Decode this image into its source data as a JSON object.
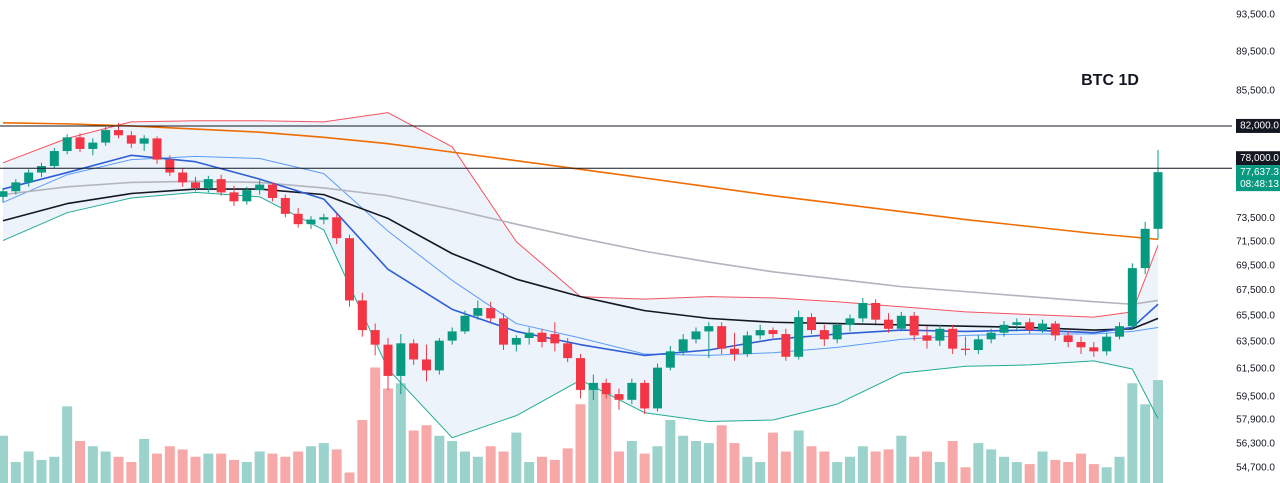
{
  "chart_data": {
    "type": "candlestick",
    "title": "BTC 1D",
    "log_scale": true,
    "ylim": [
      53740,
      95180
    ],
    "yticks": [
      {
        "value": 93500,
        "label": "93,500.0"
      },
      {
        "value": 89500,
        "label": "89,500.0"
      },
      {
        "value": 85500,
        "label": "85,500.0"
      },
      {
        "value": 73500,
        "label": "73,500.0"
      },
      {
        "value": 71500,
        "label": "71,500.0"
      },
      {
        "value": 69500,
        "label": "69,500.0"
      },
      {
        "value": 67500,
        "label": "67,500.0"
      },
      {
        "value": 65500,
        "label": "65,500.0"
      },
      {
        "value": 63500,
        "label": "63,500.0"
      },
      {
        "value": 61500,
        "label": "61,500.0"
      },
      {
        "value": 59500,
        "label": "59,500.0"
      },
      {
        "value": 57900,
        "label": "57,900.0"
      },
      {
        "value": 56300,
        "label": "56,300.0"
      },
      {
        "value": 54700,
        "label": "54,700.0"
      }
    ],
    "up_color": "#089981",
    "down_color": "#f23645",
    "volume_up_color": "#9bd3cc",
    "volume_down_color": "#f7a9a9",
    "ohlc": [
      [
        75400,
        76200,
        74900,
        75900
      ],
      [
        75900,
        77000,
        75600,
        76700
      ],
      [
        76700,
        77900,
        76300,
        77600
      ],
      [
        77600,
        78500,
        77200,
        78200
      ],
      [
        78200,
        79900,
        78000,
        79600
      ],
      [
        79600,
        81200,
        79300,
        80900
      ],
      [
        80900,
        81300,
        79500,
        79800
      ],
      [
        79800,
        80800,
        79200,
        80400
      ],
      [
        80400,
        81900,
        80100,
        81600
      ],
      [
        81600,
        82300,
        80800,
        81100
      ],
      [
        81100,
        81500,
        79900,
        80300
      ],
      [
        80300,
        81100,
        79600,
        80800
      ],
      [
        80800,
        81000,
        78400,
        78800
      ],
      [
        78800,
        79200,
        77300,
        77600
      ],
      [
        77600,
        78000,
        76300,
        76700
      ],
      [
        76700,
        77200,
        75900,
        76200
      ],
      [
        76200,
        77300,
        75800,
        77000
      ],
      [
        77000,
        77400,
        75500,
        75800
      ],
      [
        75800,
        76400,
        74600,
        75000
      ],
      [
        75000,
        76300,
        74700,
        76000
      ],
      [
        76000,
        76900,
        75600,
        76500
      ],
      [
        76500,
        76700,
        75000,
        75300
      ],
      [
        75300,
        75600,
        73600,
        73900
      ],
      [
        73900,
        74400,
        72700,
        73000
      ],
      [
        73000,
        73700,
        72600,
        73400
      ],
      [
        73400,
        73900,
        73000,
        73600
      ],
      [
        73600,
        73900,
        71300,
        71800
      ],
      [
        71800,
        72100,
        66200,
        66700
      ],
      [
        66700,
        67300,
        63900,
        64400
      ],
      [
        64400,
        64900,
        62500,
        63300
      ],
      [
        63300,
        63800,
        60000,
        61000
      ],
      [
        61000,
        64100,
        59700,
        63400
      ],
      [
        63400,
        63700,
        61800,
        62200
      ],
      [
        62200,
        63300,
        60600,
        61400
      ],
      [
        61400,
        63800,
        61100,
        63600
      ],
      [
        63600,
        64600,
        63300,
        64300
      ],
      [
        64300,
        65900,
        64100,
        65500
      ],
      [
        65500,
        66700,
        65200,
        66100
      ],
      [
        66100,
        66600,
        65000,
        65300
      ],
      [
        65300,
        65700,
        62900,
        63300
      ],
      [
        63300,
        64000,
        62800,
        63800
      ],
      [
        63800,
        64600,
        63300,
        64200
      ],
      [
        64200,
        64500,
        63100,
        63500
      ],
      [
        64100,
        65000,
        62800,
        63400
      ],
      [
        63400,
        63800,
        62000,
        62300
      ],
      [
        62300,
        62600,
        59400,
        60000
      ],
      [
        60000,
        61100,
        59300,
        60500
      ],
      [
        60500,
        60800,
        59400,
        59700
      ],
      [
        59700,
        60100,
        58600,
        59300
      ],
      [
        59300,
        60800,
        59000,
        60500
      ],
      [
        60500,
        60700,
        58300,
        58700
      ],
      [
        58700,
        61900,
        58500,
        61600
      ],
      [
        61600,
        63200,
        61400,
        62800
      ],
      [
        62800,
        64100,
        62500,
        63700
      ],
      [
        63700,
        64600,
        63400,
        64300
      ],
      [
        64300,
        65000,
        62300,
        64700
      ],
      [
        64700,
        65000,
        62600,
        63000
      ],
      [
        63000,
        64200,
        62100,
        62600
      ],
      [
        62600,
        64300,
        62400,
        64000
      ],
      [
        64000,
        64800,
        63700,
        64400
      ],
      [
        64400,
        64600,
        63800,
        64100
      ],
      [
        64100,
        64500,
        62100,
        62400
      ],
      [
        62400,
        65900,
        62200,
        65400
      ],
      [
        65400,
        65700,
        64100,
        64400
      ],
      [
        64400,
        64800,
        63200,
        63700
      ],
      [
        63700,
        65000,
        63400,
        64800
      ],
      [
        64800,
        65600,
        64300,
        65300
      ],
      [
        65300,
        66900,
        65000,
        66500
      ],
      [
        66500,
        66800,
        64900,
        65200
      ],
      [
        65200,
        65700,
        64200,
        64500
      ],
      [
        64500,
        65800,
        64300,
        65500
      ],
      [
        65500,
        65800,
        63600,
        64000
      ],
      [
        64000,
        64700,
        63000,
        63600
      ],
      [
        63600,
        64800,
        63200,
        64500
      ],
      [
        64500,
        64800,
        62600,
        63000
      ],
      [
        63000,
        63900,
        62500,
        62900
      ],
      [
        62900,
        64000,
        62600,
        63700
      ],
      [
        63700,
        64500,
        63400,
        64200
      ],
      [
        64200,
        65100,
        63900,
        64800
      ],
      [
        64800,
        65300,
        64300,
        65000
      ],
      [
        65000,
        65300,
        64100,
        64400
      ],
      [
        64400,
        65200,
        64200,
        64900
      ],
      [
        64900,
        65100,
        63600,
        64000
      ],
      [
        64000,
        64300,
        63100,
        63500
      ],
      [
        63500,
        63900,
        62600,
        63100
      ],
      [
        63100,
        63500,
        62400,
        62800
      ],
      [
        62800,
        64200,
        62500,
        63900
      ],
      [
        63900,
        65000,
        63700,
        64700
      ],
      [
        64700,
        69700,
        64500,
        69300
      ],
      [
        69300,
        73200,
        68800,
        72600
      ],
      [
        72600,
        79700,
        71700,
        77637.3
      ]
    ],
    "volume": [
      45,
      20,
      30,
      22,
      25,
      73,
      40,
      35,
      30,
      25,
      20,
      42,
      28,
      35,
      32,
      25,
      28,
      28,
      22,
      20,
      30,
      28,
      25,
      30,
      35,
      38,
      32,
      10,
      60,
      110,
      90,
      95,
      50,
      55,
      45,
      40,
      30,
      25,
      35,
      30,
      48,
      20,
      25,
      22,
      33,
      75,
      95,
      85,
      30,
      40,
      28,
      35,
      60,
      45,
      40,
      38,
      55,
      38,
      25,
      20,
      48,
      30,
      50,
      35,
      30,
      20,
      25,
      35,
      30,
      32,
      45,
      25,
      30,
      20,
      40,
      15,
      38,
      32,
      25,
      20,
      18,
      30,
      22,
      20,
      28,
      18,
      15,
      25,
      95,
      75,
      98
    ],
    "line_x": [
      0,
      5,
      10,
      15,
      20,
      25,
      30,
      35,
      40,
      45,
      50,
      55,
      60,
      65,
      70,
      75,
      80,
      85,
      88,
      90
    ],
    "band": {
      "fill": "#e7f0fa",
      "upper": {
        "color": "#f7525f",
        "values": [
          78500,
          80800,
          82400,
          82500,
          82500,
          82400,
          83300,
          80000,
          71500,
          67000,
          66800,
          67000,
          66900,
          66600,
          66200,
          65800,
          65600,
          65400,
          65800,
          71200
        ]
      },
      "basis": {
        "color": "#5b9cf6",
        "values": [
          74900,
          77400,
          78800,
          79100,
          78900,
          77500,
          72400,
          68300,
          64900,
          63800,
          62600,
          62500,
          62700,
          63100,
          63700,
          64000,
          64100,
          64100,
          64300,
          64600
        ]
      },
      "lower": {
        "color": "#22ab94",
        "values": [
          71600,
          74000,
          75300,
          75800,
          75400,
          72500,
          61500,
          56700,
          58200,
          60700,
          58400,
          57800,
          57900,
          59000,
          61200,
          61700,
          61800,
          62100,
          61500,
          58000
        ]
      }
    },
    "moving_averages": [
      {
        "color": "#ef6c00",
        "values": [
          82300,
          82200,
          82000,
          81700,
          81400,
          80900,
          80300,
          79500,
          78700,
          77900,
          77100,
          76300,
          75500,
          74800,
          74100,
          73400,
          72800,
          72200,
          71900,
          71700
        ]
      },
      {
        "color": "#b2b5be",
        "values": [
          75600,
          76300,
          76700,
          76800,
          76700,
          76200,
          75500,
          74300,
          73000,
          71800,
          70700,
          69800,
          69000,
          68400,
          67800,
          67400,
          67000,
          66600,
          66400,
          66700
        ]
      },
      {
        "color": "#131722",
        "values": [
          73300,
          74800,
          75700,
          76100,
          76100,
          75600,
          73500,
          70500,
          68400,
          67000,
          65900,
          65300,
          65000,
          64900,
          64800,
          64700,
          64600,
          64400,
          64500,
          65300
        ]
      },
      {
        "color": "#2f5fd6",
        "values": [
          76100,
          77600,
          79200,
          78600,
          77000,
          75200,
          69200,
          66000,
          64300,
          63300,
          62500,
          62900,
          63700,
          64100,
          64400,
          64300,
          64400,
          64200,
          64600,
          66400
        ]
      }
    ],
    "levels": [
      {
        "value": 82000,
        "label": "82,000.0"
      },
      {
        "value": 78000,
        "label": "78,000.0"
      }
    ],
    "last_price": {
      "value": 77637.3,
      "label": "77,637.3"
    },
    "countdown": "08:48:13"
  }
}
